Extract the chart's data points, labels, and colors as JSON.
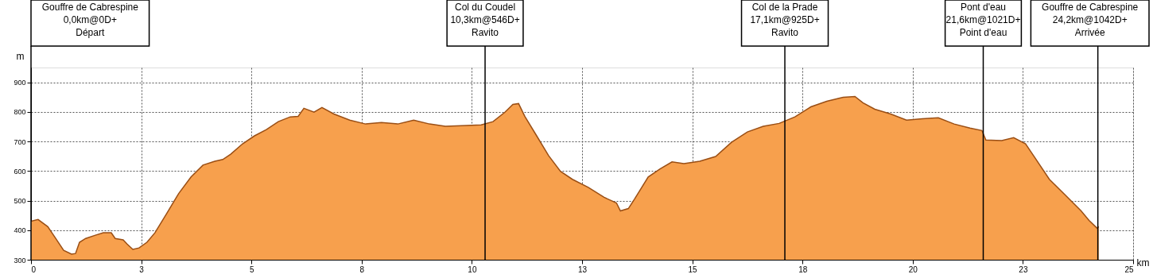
{
  "chart_data": {
    "type": "area",
    "xlabel": "km",
    "ylabel": "m",
    "x": [
      0,
      0.16,
      0.38,
      0.56,
      0.74,
      0.92,
      1.01,
      1.1,
      1.24,
      1.46,
      1.64,
      1.82,
      1.91,
      2.09,
      2.18,
      2.31,
      2.45,
      2.63,
      2.81,
      3.08,
      3.35,
      3.63,
      3.9,
      4.17,
      4.35,
      4.53,
      4.8,
      5.07,
      5.34,
      5.61,
      5.88,
      6.06,
      6.19,
      6.42,
      6.6,
      6.87,
      7.23,
      7.59,
      7.95,
      8.32,
      8.68,
      9.04,
      9.4,
      9.76,
      10.21,
      10.48,
      10.75,
      10.93,
      11.06,
      11.2,
      11.47,
      11.74,
      12.01,
      12.28,
      12.64,
      13.0,
      13.28,
      13.37,
      13.55,
      13.69,
      14.0,
      14.27,
      14.54,
      14.81,
      15.17,
      15.53,
      15.89,
      16.25,
      16.61,
      16.97,
      17.33,
      17.69,
      18.05,
      18.42,
      18.69,
      18.87,
      19.14,
      19.5,
      19.86,
      20.22,
      20.58,
      20.94,
      21.3,
      21.57,
      21.66,
      22.02,
      22.29,
      22.56,
      22.74,
      23.1,
      23.46,
      23.82,
      24.0,
      24.18,
      24.22
    ],
    "series": [
      {
        "color": "#f7a04d",
        "values": [
          430,
          436,
          412,
          372,
          332,
          319,
          321,
          359,
          372,
          383,
          391,
          391,
          372,
          367,
          353,
          335,
          340,
          359,
          391,
          457,
          524,
          580,
          620,
          633,
          639,
          657,
          692,
          719,
          740,
          767,
          783,
          785,
          812,
          799,
          815,
          793,
          772,
          759,
          764,
          759,
          772,
          759,
          751,
          753,
          756,
          767,
          799,
          825,
          828,
          785,
          719,
          652,
          599,
          572,
          545,
          511,
          492,
          465,
          473,
          505,
          580,
          607,
          631,
          625,
          633,
          649,
          697,
          732,
          751,
          761,
          783,
          817,
          836,
          849,
          852,
          831,
          809,
          793,
          772,
          777,
          780,
          759,
          745,
          737,
          705,
          703,
          713,
          692,
          652,
          572,
          519,
          465,
          433,
          407,
          412
        ]
      }
    ],
    "xlim": [
      0,
      25
    ],
    "ylim": [
      300,
      950
    ],
    "xticks": [
      0,
      {
        "value": 2.5,
        "label": "3"
      },
      5,
      {
        "value": 7.5,
        "label": "8"
      },
      10,
      {
        "value": 12.5,
        "label": "13"
      },
      15,
      {
        "value": 17.5,
        "label": "18"
      },
      20,
      {
        "value": 22.5,
        "label": "23"
      },
      25
    ],
    "yticks": [
      300,
      400,
      500,
      600,
      700,
      800,
      900
    ],
    "grid": true,
    "ref_lines": [
      {
        "axis": "x",
        "value": 0,
        "label": "Gouffre de Cabrespine\n0,0km@0D+\nDépart"
      },
      {
        "axis": "x",
        "value": 10.3,
        "label": "Col du Coudel\n10,3km@546D+\nRavito"
      },
      {
        "axis": "x",
        "value": 17.1,
        "label": "Col de la Prade\n17,1km@925D+\nRavito"
      },
      {
        "axis": "x",
        "value": 21.6,
        "label": "Pont d'eau\n21,6km@1021D+\nPoint d'eau"
      },
      {
        "axis": "x",
        "value": 24.2,
        "label": "Gouffre de Cabrespine\n24,2km@1042D+\nArrivée"
      }
    ]
  }
}
